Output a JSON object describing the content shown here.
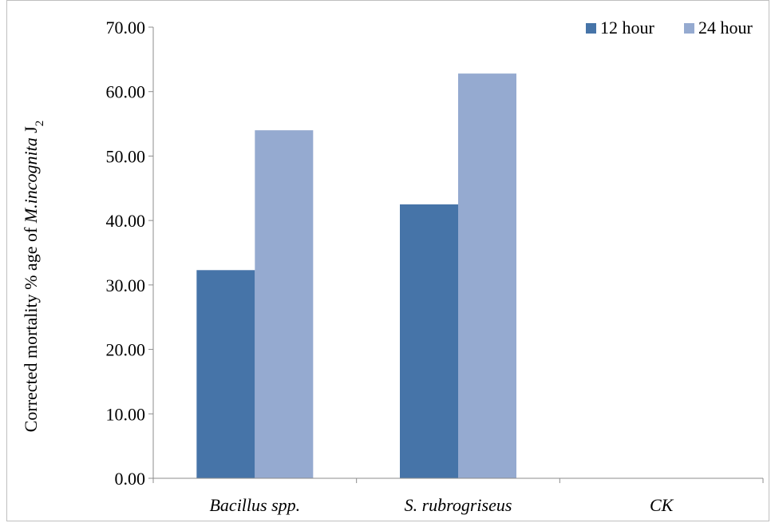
{
  "chart_data": {
    "type": "bar",
    "categories": [
      "Bacillus spp.",
      "S. rubrogriseus",
      "CK"
    ],
    "series": [
      {
        "name": "12 hour",
        "values": [
          32.3,
          42.5,
          0
        ],
        "color": "#4674a8"
      },
      {
        "name": "24 hour",
        "values": [
          54.0,
          62.8,
          0
        ],
        "color": "#95aad0"
      }
    ],
    "ylabel": {
      "prefix": "Corrected mortality % age of ",
      "species": "M.incognita",
      "stage": " J",
      "subscript": "2"
    },
    "ylim": [
      0,
      70
    ],
    "yticks": [
      "0.00",
      "10.00",
      "20.00",
      "30.00",
      "40.00",
      "50.00",
      "60.00",
      "70.00"
    ],
    "legend_position": "top-right",
    "grid": false
  }
}
